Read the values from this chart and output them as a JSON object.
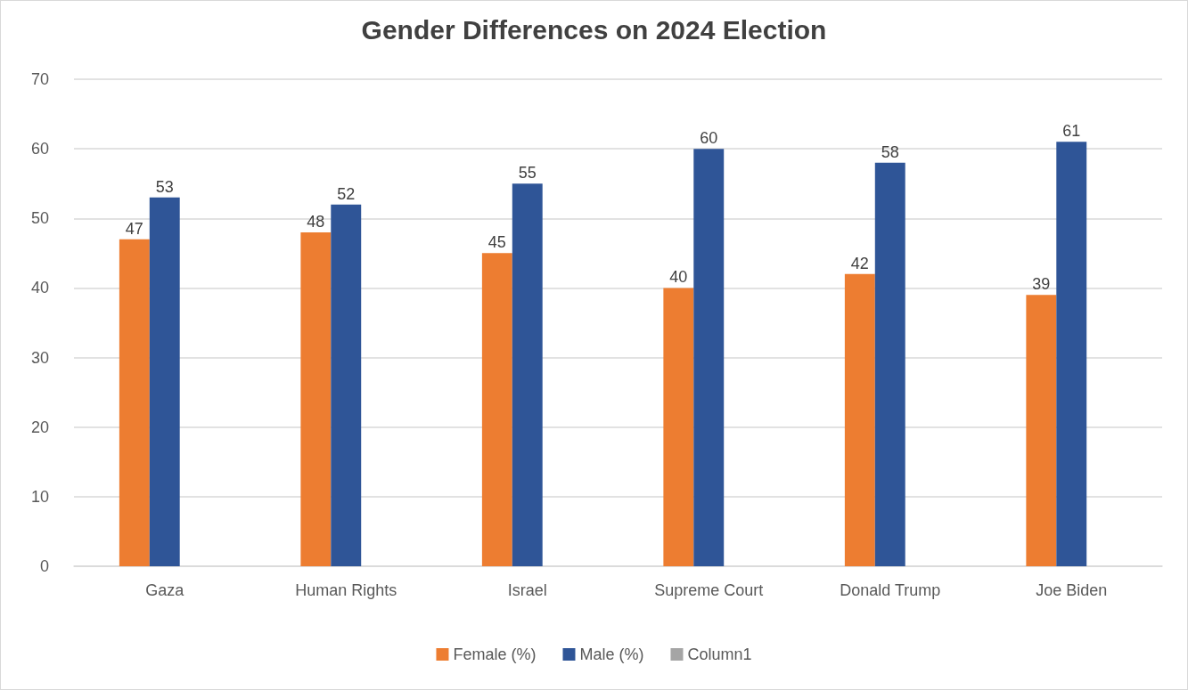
{
  "chart_data": {
    "type": "bar",
    "title": "Gender Differences on 2024 Election",
    "categories": [
      "Gaza",
      "Human Rights",
      "Israel",
      "Supreme Court",
      "Donald Trump",
      "Joe Biden"
    ],
    "series": [
      {
        "name": "Female (%)",
        "color": "#ed7d31",
        "values": [
          47,
          48,
          45,
          40,
          42,
          39
        ]
      },
      {
        "name": "Male (%)",
        "color": "#2f5597",
        "values": [
          53,
          52,
          55,
          60,
          58,
          61
        ]
      },
      {
        "name": "Column1",
        "color": "#a5a5a5",
        "values": [
          null,
          null,
          null,
          null,
          null,
          null
        ]
      }
    ],
    "ylim": [
      0,
      70
    ],
    "yticks": [
      0,
      10,
      20,
      30,
      40,
      50,
      60,
      70
    ],
    "grid": "y",
    "legend": "bottom",
    "data_labels": true
  }
}
